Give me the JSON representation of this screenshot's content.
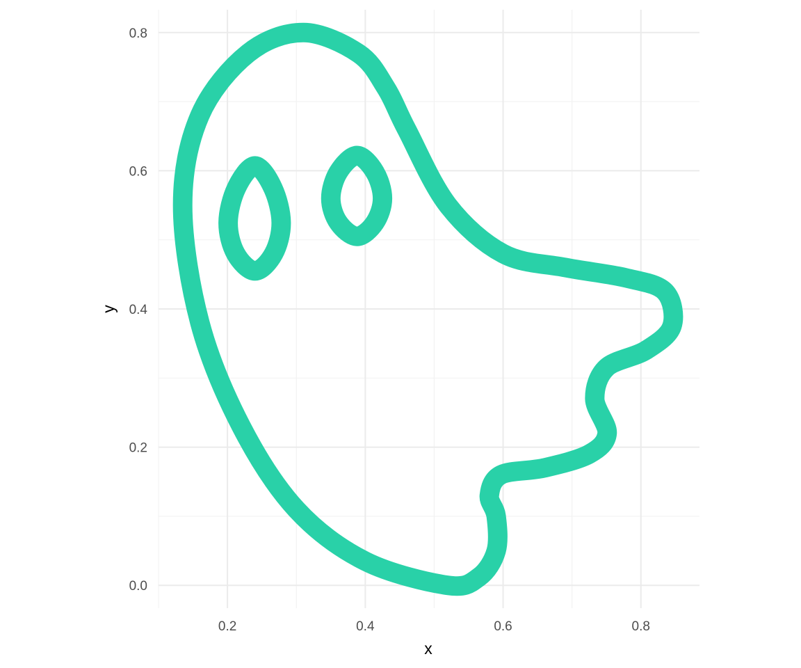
{
  "chart_data": {
    "type": "line",
    "title": "",
    "xlabel": "x",
    "ylabel": "y",
    "xlim": [
      0.1,
      0.885
    ],
    "ylim": [
      -0.033,
      0.833
    ],
    "x_ticks": [
      0.2,
      0.4,
      0.6,
      0.8
    ],
    "x_tick_labels": [
      "0.2",
      "0.4",
      "0.6",
      "0.8"
    ],
    "y_ticks": [
      0.0,
      0.2,
      0.4,
      0.6,
      0.8
    ],
    "y_tick_labels": [
      "0.0",
      "0.2",
      "0.4",
      "0.6",
      "0.8"
    ],
    "x_minor": [
      0.1,
      0.3,
      0.5,
      0.7
    ],
    "y_minor": [
      0.1,
      0.3,
      0.5,
      0.7
    ],
    "grid": true,
    "line_color": "#29d1a8",
    "series": [
      {
        "points": [
          [
            0.52,
            0.0
          ],
          [
            0.565,
            0.012
          ],
          [
            0.59,
            0.05
          ],
          [
            0.59,
            0.1
          ],
          [
            0.58,
            0.13
          ],
          [
            0.597,
            0.16
          ],
          [
            0.66,
            0.17
          ],
          [
            0.725,
            0.19
          ],
          [
            0.751,
            0.22
          ],
          [
            0.733,
            0.27
          ],
          [
            0.75,
            0.315
          ],
          [
            0.807,
            0.34
          ],
          [
            0.845,
            0.375
          ],
          [
            0.835,
            0.425
          ],
          [
            0.778,
            0.445
          ],
          [
            0.69,
            0.46
          ],
          [
            0.6,
            0.48
          ],
          [
            0.52,
            0.55
          ],
          [
            0.46,
            0.66
          ],
          [
            0.43,
            0.72
          ],
          [
            0.39,
            0.77
          ],
          [
            0.31,
            0.8
          ],
          [
            0.23,
            0.77
          ],
          [
            0.16,
            0.68
          ],
          [
            0.135,
            0.55
          ],
          [
            0.16,
            0.38
          ],
          [
            0.22,
            0.23
          ],
          [
            0.3,
            0.11
          ],
          [
            0.4,
            0.035
          ],
          [
            0.52,
            0.0
          ]
        ]
      },
      {
        "points": [
          [
            0.24,
            0.455
          ],
          [
            0.267,
            0.48
          ],
          [
            0.278,
            0.525
          ],
          [
            0.266,
            0.575
          ],
          [
            0.24,
            0.607
          ],
          [
            0.213,
            0.575
          ],
          [
            0.201,
            0.525
          ],
          [
            0.212,
            0.48
          ],
          [
            0.24,
            0.455
          ]
        ]
      },
      {
        "points": [
          [
            0.388,
            0.505
          ],
          [
            0.414,
            0.525
          ],
          [
            0.425,
            0.56
          ],
          [
            0.414,
            0.598
          ],
          [
            0.388,
            0.622
          ],
          [
            0.361,
            0.598
          ],
          [
            0.35,
            0.56
          ],
          [
            0.361,
            0.525
          ],
          [
            0.388,
            0.505
          ]
        ]
      }
    ]
  }
}
